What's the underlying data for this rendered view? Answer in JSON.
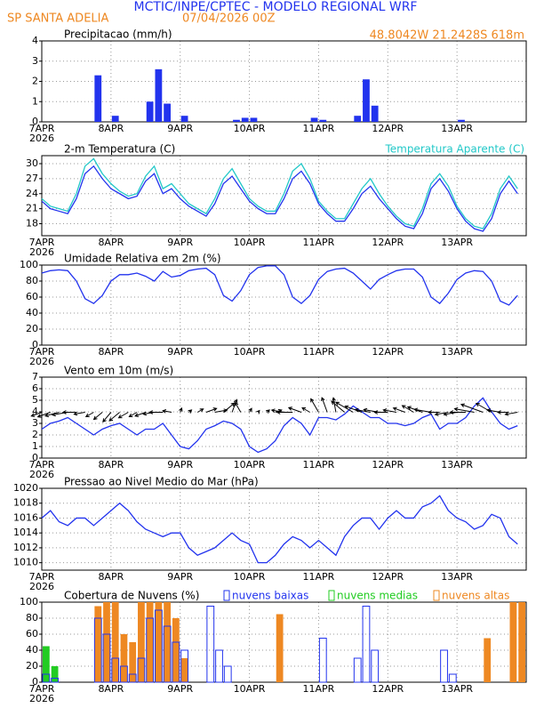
{
  "header": {
    "title": "MCTIC/INPE/CPTEC - MODELO REGIONAL WRF",
    "station": "SP SANTA ADELIA",
    "run": "07/04/2026 00Z",
    "location": "48.8042W 21.2428S 618m"
  },
  "chart_data": [
    {
      "type": "bar",
      "title": "Precipitacao (mm/h)",
      "date_labels": [
        "7APR",
        "8APR",
        "9APR",
        "10APR",
        "11APR",
        "12APR",
        "13APR"
      ],
      "year": "2026",
      "ylim": [
        0,
        4
      ],
      "yticks": [
        0,
        1,
        2,
        3,
        4
      ],
      "grid": true,
      "series": [
        {
          "name": null,
          "color": "#2233ee",
          "style": "fill",
          "values": [
            0,
            0,
            0,
            0,
            0,
            0,
            2.3,
            0,
            0.3,
            0,
            0,
            0,
            1.0,
            2.6,
            0.9,
            0,
            0.3,
            0,
            0,
            0,
            0,
            0,
            0.1,
            0.2,
            0.2,
            0,
            0,
            0,
            0,
            0,
            0,
            0.2,
            0.1,
            0,
            0,
            0,
            0.3,
            2.1,
            0.8,
            0,
            0,
            0,
            0,
            0,
            0,
            0,
            0,
            0,
            0.1,
            0,
            0,
            0,
            0,
            0,
            0,
            0
          ]
        }
      ]
    },
    {
      "type": "line",
      "title": "2-m Temperatura (C)",
      "date_labels": [
        "7APR",
        "8APR",
        "9APR",
        "10APR",
        "11APR",
        "12APR",
        "13APR"
      ],
      "year": "2026",
      "ylim": [
        15.6,
        31.6
      ],
      "yticks": [
        18,
        21,
        24,
        27,
        30
      ],
      "grid": true,
      "series": [
        {
          "name": null,
          "color": "#2233ee",
          "values": [
            22.5,
            21,
            20.5,
            20,
            23,
            28,
            29.5,
            27,
            25,
            24,
            23,
            23.5,
            26.5,
            28,
            24,
            25,
            23,
            21.5,
            20.5,
            19.5,
            22,
            26,
            27.5,
            25,
            22.5,
            21,
            20,
            20,
            23,
            27,
            28.5,
            26,
            22,
            20,
            18.5,
            18.5,
            21,
            24,
            25.5,
            23,
            21,
            19,
            17.5,
            17,
            20,
            25,
            27,
            24.5,
            21,
            18.5,
            17,
            16.5,
            19,
            24,
            26.5,
            24
          ]
        },
        {
          "name": "Temperatura Aparente (C)",
          "color": "#22c8c8",
          "values": [
            23,
            21.5,
            21,
            20.5,
            24,
            29.5,
            31,
            28,
            26,
            24.5,
            23.5,
            24,
            27.5,
            29.5,
            25,
            26,
            24,
            22,
            21,
            20,
            23,
            27,
            29,
            26,
            23,
            21.5,
            20.5,
            20.5,
            24,
            28.5,
            30,
            27,
            22.5,
            20.5,
            19,
            19,
            22,
            25,
            27,
            24,
            21.5,
            19.5,
            18,
            17.5,
            21,
            26,
            28,
            25.5,
            21.5,
            19,
            17.5,
            17,
            20,
            25,
            27.5,
            25
          ]
        }
      ]
    },
    {
      "type": "line",
      "title": "Umidade Relativa em 2m (%)",
      "date_labels": [
        "7APR",
        "8APR",
        "9APR",
        "10APR",
        "11APR",
        "12APR",
        "13APR"
      ],
      "year": "2026",
      "ylim": [
        0,
        100
      ],
      "yticks": [
        0,
        20,
        40,
        60,
        80,
        100
      ],
      "grid": true,
      "series": [
        {
          "name": null,
          "color": "#2233ee",
          "values": [
            90,
            93,
            94,
            93,
            80,
            58,
            52,
            62,
            80,
            88,
            88,
            90,
            86,
            80,
            92,
            85,
            87,
            93,
            95,
            96,
            88,
            62,
            55,
            68,
            88,
            97,
            99,
            99,
            88,
            60,
            52,
            62,
            82,
            92,
            95,
            96,
            90,
            80,
            70,
            82,
            88,
            93,
            95,
            95,
            85,
            60,
            52,
            65,
            82,
            90,
            93,
            92,
            80,
            55,
            50,
            62
          ]
        }
      ]
    },
    {
      "type": "wind",
      "title": "Vento em 10m (m/s)",
      "date_labels": [
        "7APR",
        "8APR",
        "9APR",
        "10APR",
        "11APR",
        "12APR",
        "13APR"
      ],
      "year": "2026",
      "ylim": [
        0,
        7
      ],
      "yticks": [
        0,
        1,
        2,
        3,
        4,
        5,
        6,
        7
      ],
      "grid": true,
      "series": [
        {
          "name": null,
          "color": "#2233ee",
          "values": [
            2.5,
            3,
            3.2,
            3.5,
            3,
            2.5,
            2,
            2.5,
            2.8,
            3,
            2.5,
            2,
            2.5,
            2.5,
            3,
            2,
            1,
            0.8,
            1.5,
            2.5,
            2.8,
            3.2,
            3,
            2.5,
            1,
            0.5,
            0.8,
            1.5,
            2.8,
            3.5,
            3,
            2,
            3.5,
            3.5,
            3.3,
            3.8,
            4.5,
            4,
            3.5,
            3.5,
            3,
            3,
            2.8,
            3,
            3.5,
            3.8,
            2.5,
            3,
            3,
            3.5,
            4.5,
            5.2,
            4,
            3,
            2.5,
            2.8
          ]
        }
      ],
      "directions": [
        70,
        70,
        75,
        80,
        90,
        80,
        60,
        50,
        40,
        50,
        60,
        60,
        70,
        80,
        90,
        100,
        200,
        230,
        240,
        250,
        260,
        230,
        200,
        150,
        210,
        220,
        230,
        250,
        100,
        90,
        110,
        120,
        150,
        160,
        170,
        130,
        120,
        110,
        100,
        100,
        90,
        100,
        110,
        120,
        110,
        100,
        90,
        80,
        80,
        90,
        100,
        110,
        120,
        100,
        90,
        80
      ]
    },
    {
      "type": "line",
      "title": "Pressao ao Nivel Medio do Mar (hPa)",
      "date_labels": [
        "7APR",
        "8APR",
        "9APR",
        "10APR",
        "11APR",
        "12APR",
        "13APR"
      ],
      "year": "2026",
      "ylim": [
        1009,
        1020
      ],
      "yticks": [
        1010,
        1012,
        1014,
        1016,
        1018,
        1020
      ],
      "grid": true,
      "series": [
        {
          "name": null,
          "color": "#2233ee",
          "values": [
            1016,
            1017,
            1015.5,
            1015,
            1016,
            1016,
            1015,
            1016,
            1017,
            1018,
            1017,
            1015.5,
            1014.5,
            1014,
            1013.5,
            1014,
            1014,
            1012,
            1011,
            1011.5,
            1012,
            1013,
            1014,
            1013,
            1012.5,
            1010,
            1010,
            1011,
            1012.5,
            1013.5,
            1013,
            1012,
            1013,
            1012,
            1011,
            1013.5,
            1015,
            1016,
            1016,
            1014.5,
            1016,
            1017,
            1016,
            1016,
            1017.5,
            1018,
            1019,
            1017,
            1016,
            1015.5,
            1014.5,
            1015,
            1016.5,
            1016,
            1013.5,
            1012.5
          ]
        }
      ]
    },
    {
      "type": "bar",
      "title": "Cobertura de Nuvens (%)",
      "date_labels": [
        "7APR",
        "8APR",
        "9APR",
        "10APR",
        "11APR",
        "12APR",
        "13APR"
      ],
      "year": "2026",
      "ylim": [
        0,
        100
      ],
      "yticks": [
        0,
        20,
        40,
        60,
        80,
        100
      ],
      "grid": true,
      "series": [
        {
          "name": "nuvens baixas",
          "color": "#2233ee",
          "style": "outline",
          "values": [
            10,
            5,
            0,
            0,
            0,
            0,
            80,
            60,
            30,
            20,
            10,
            30,
            80,
            90,
            70,
            50,
            40,
            0,
            0,
            95,
            40,
            20,
            0,
            0,
            0,
            0,
            0,
            0,
            0,
            0,
            0,
            0,
            55,
            0,
            0,
            0,
            30,
            95,
            40,
            0,
            0,
            0,
            0,
            0,
            0,
            0,
            40,
            10,
            0,
            0,
            0,
            0,
            0,
            0,
            0,
            0
          ]
        },
        {
          "name": "nuvens medias",
          "color": "#22cc22",
          "style": "fill",
          "values": [
            45,
            20,
            0,
            0,
            0,
            0,
            30,
            40,
            20,
            0,
            0,
            0,
            30,
            50,
            70,
            40,
            25,
            0,
            0,
            0,
            0,
            0,
            0,
            0,
            0,
            0,
            0,
            0,
            0,
            0,
            0,
            0,
            0,
            0,
            0,
            0,
            0,
            0,
            0,
            0,
            0,
            0,
            0,
            0,
            0,
            0,
            0,
            0,
            0,
            0,
            0,
            0,
            0,
            0,
            0,
            0
          ]
        },
        {
          "name": "nuvens altas",
          "color": "#ee8822",
          "style": "fill",
          "values": [
            0,
            0,
            0,
            0,
            0,
            0,
            95,
            100,
            100,
            60,
            50,
            100,
            100,
            100,
            100,
            80,
            30,
            0,
            0,
            0,
            0,
            0,
            0,
            0,
            0,
            0,
            0,
            85,
            0,
            0,
            0,
            0,
            0,
            0,
            0,
            0,
            0,
            0,
            0,
            0,
            0,
            0,
            0,
            0,
            0,
            0,
            0,
            0,
            0,
            0,
            0,
            55,
            0,
            0,
            100,
            100
          ]
        }
      ]
    }
  ]
}
